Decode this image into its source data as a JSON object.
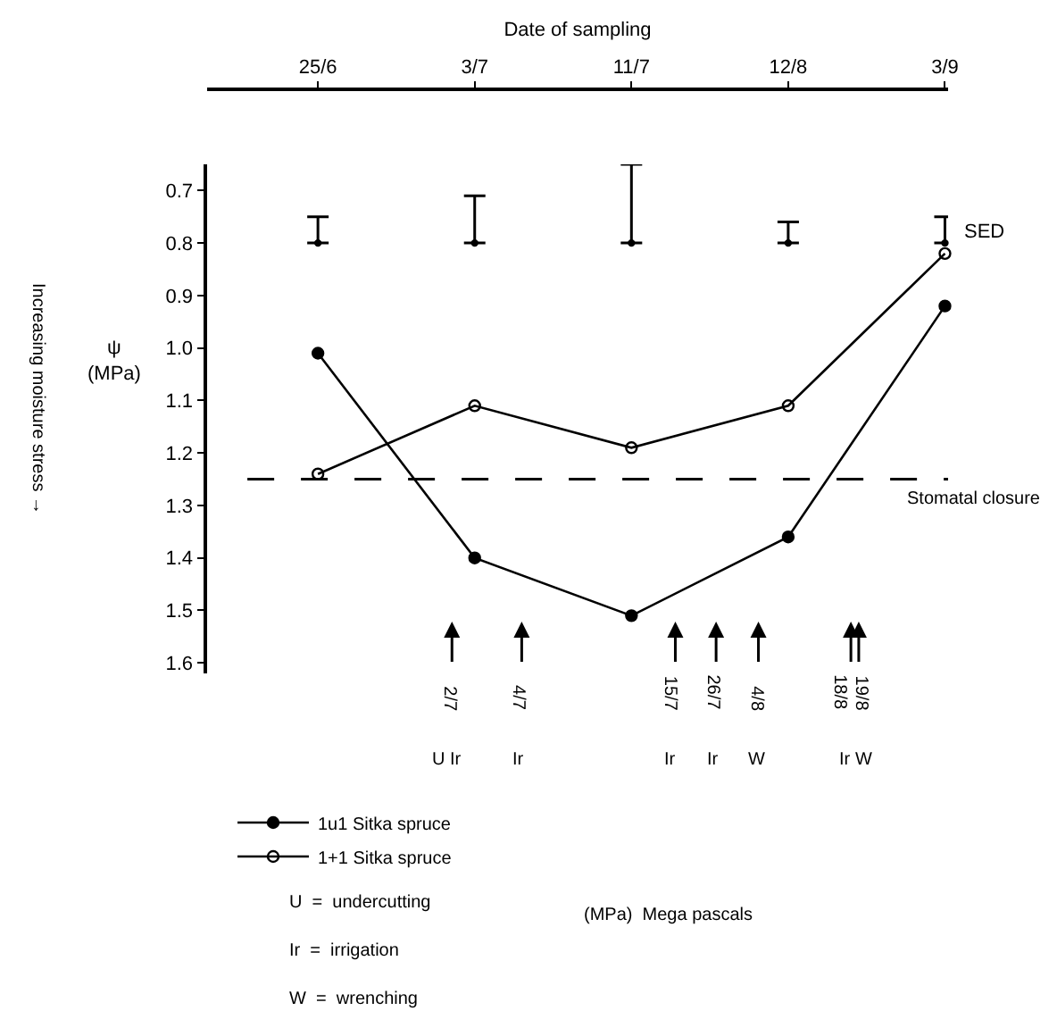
{
  "chart_data": {
    "type": "line",
    "xlabel": "Date of sampling",
    "ylabel": "ψ (MPa)",
    "categories": [
      "25/6",
      "3/7",
      "11/7",
      "12/8",
      "3/9"
    ],
    "ylim": [
      1.62,
      0.65
    ],
    "yticks": [
      0.7,
      0.8,
      0.9,
      {
        "value": 1.0,
        "label": "1.0"
      },
      1.1,
      1.2,
      1.3,
      1.4,
      1.5,
      1.6
    ],
    "series": [
      {
        "name": "1u1 Sitka spruce",
        "color": "#000000",
        "marker": "circle",
        "values": [
          1.01,
          1.4,
          1.51,
          1.36,
          0.92
        ]
      },
      {
        "name": "1+1 Sitka spruce",
        "color": "#000000",
        "marker": "circle-open",
        "values": [
          1.24,
          1.11,
          1.19,
          1.11,
          0.82
        ]
      },
      {
        "name": "SED",
        "type": "scatter",
        "color": "#000000",
        "marker": "none",
        "values": [
          0.8,
          0.8,
          0.8,
          0.8,
          0.8
        ],
        "errors": [
          [
            0.75,
            0.8
          ],
          [
            0.71,
            0.8
          ],
          [
            0.65,
            0.8
          ],
          [
            0.76,
            0.8
          ],
          [
            0.75,
            0.8
          ]
        ]
      }
    ],
    "ref_lines": [
      {
        "axis": "y",
        "value": 1.25,
        "label": "Stomatal closure",
        "color": "#000000",
        "line_style": "dashed"
      }
    ],
    "annotations": [
      "2/7",
      "4/7",
      "15/7",
      "26/7",
      "4/8",
      "18/8",
      "19/8",
      "U Ir",
      "Ir",
      "Ir",
      "Ir",
      "W",
      "Ir",
      "W",
      "Increasing moisture stress →",
      "U  =  undercutting",
      "Ir  =  irrigation",
      "W  =  wrenching",
      "(MPa)  Mega pascals"
    ],
    "legend": "bottom left",
    "line_style": "solid"
  }
}
